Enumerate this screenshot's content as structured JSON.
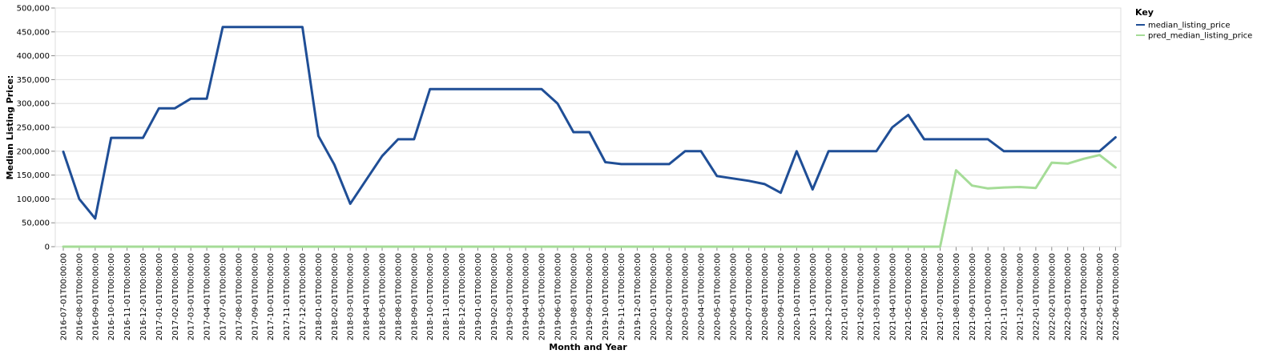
{
  "chart_data": {
    "type": "line",
    "xlabel": "Month and Year",
    "ylabel": "Median Listing Price:",
    "ylim": [
      0,
      500000
    ],
    "y_ticks": [
      "0",
      "50,000",
      "100,000",
      "150,000",
      "200,000",
      "250,000",
      "300,000",
      "350,000",
      "400,000",
      "450,000",
      "500,000"
    ],
    "y_tick_values": [
      0,
      50000,
      100000,
      150000,
      200000,
      250000,
      300000,
      350000,
      400000,
      450000,
      500000
    ],
    "grid": true,
    "legend": {
      "title": "Key",
      "placement": "right"
    },
    "categories": [
      "2016-07-01T00:00:00",
      "2016-08-01T00:00:00",
      "2016-09-01T00:00:00",
      "2016-10-01T00:00:00",
      "2016-11-01T00:00:00",
      "2016-12-01T00:00:00",
      "2017-01-01T00:00:00",
      "2017-02-01T00:00:00",
      "2017-03-01T00:00:00",
      "2017-04-01T00:00:00",
      "2017-07-01T00:00:00",
      "2017-08-01T00:00:00",
      "2017-09-01T00:00:00",
      "2017-10-01T00:00:00",
      "2017-11-01T00:00:00",
      "2017-12-01T00:00:00",
      "2018-01-01T00:00:00",
      "2018-02-01T00:00:00",
      "2018-03-01T00:00:00",
      "2018-04-01T00:00:00",
      "2018-05-01T00:00:00",
      "2018-08-01T00:00:00",
      "2018-09-01T00:00:00",
      "2018-10-01T00:00:00",
      "2018-11-01T00:00:00",
      "2018-12-01T00:00:00",
      "2019-01-01T00:00:00",
      "2019-02-01T00:00:00",
      "2019-03-01T00:00:00",
      "2019-04-01T00:00:00",
      "2019-05-01T00:00:00",
      "2019-06-01T00:00:00",
      "2019-08-01T00:00:00",
      "2019-09-01T00:00:00",
      "2019-10-01T00:00:00",
      "2019-11-01T00:00:00",
      "2019-12-01T00:00:00",
      "2020-01-01T00:00:00",
      "2020-02-01T00:00:00",
      "2020-03-01T00:00:00",
      "2020-04-01T00:00:00",
      "2020-05-01T00:00:00",
      "2020-06-01T00:00:00",
      "2020-07-01T00:00:00",
      "2020-08-01T00:00:00",
      "2020-09-01T00:00:00",
      "2020-10-01T00:00:00",
      "2020-11-01T00:00:00",
      "2020-12-01T00:00:00",
      "2021-01-01T00:00:00",
      "2021-02-01T00:00:00",
      "2021-03-01T00:00:00",
      "2021-04-01T00:00:00",
      "2021-05-01T00:00:00",
      "2021-06-01T00:00:00",
      "2021-07-01T00:00:00",
      "2021-08-01T00:00:00",
      "2021-09-01T00:00:00",
      "2021-10-01T00:00:00",
      "2021-11-01T00:00:00",
      "2021-12-01T00:00:00",
      "2022-01-01T00:00:00",
      "2022-02-01T00:00:00",
      "2022-03-01T00:00:00",
      "2022-04-01T00:00:00",
      "2022-05-01T00:00:00",
      "2022-06-01T00:00:00"
    ],
    "series": [
      {
        "name": "median_listing_price",
        "color": "#1f4e96",
        "values": [
          199000,
          100000,
          59000,
          228000,
          228000,
          228000,
          290000,
          290000,
          310000,
          310000,
          460000,
          460000,
          460000,
          460000,
          460000,
          460000,
          232000,
          172000,
          90000,
          140000,
          190000,
          225000,
          225000,
          330000,
          330000,
          330000,
          330000,
          330000,
          330000,
          330000,
          330000,
          300000,
          240000,
          240000,
          177000,
          173000,
          173000,
          173000,
          173000,
          200000,
          200000,
          148000,
          143000,
          138000,
          131000,
          113000,
          200000,
          120000,
          200000,
          200000,
          200000,
          200000,
          250000,
          276000,
          225000,
          225000,
          225000,
          225000,
          225000,
          200000,
          200000,
          200000,
          200000,
          200000,
          200000,
          200000,
          229000
        ]
      },
      {
        "name": "pred_median_listing_price",
        "color": "#a5dc97",
        "values": [
          0,
          0,
          0,
          0,
          0,
          0,
          0,
          0,
          0,
          0,
          0,
          0,
          0,
          0,
          0,
          0,
          0,
          0,
          0,
          0,
          0,
          0,
          0,
          0,
          0,
          0,
          0,
          0,
          0,
          0,
          0,
          0,
          0,
          0,
          0,
          0,
          0,
          0,
          0,
          0,
          0,
          0,
          0,
          0,
          0,
          0,
          0,
          0,
          0,
          0,
          0,
          0,
          0,
          0,
          0,
          0,
          160000,
          128000,
          122000,
          124000,
          125000,
          123000,
          176000,
          174000,
          184000,
          192000,
          166000
        ]
      }
    ]
  }
}
